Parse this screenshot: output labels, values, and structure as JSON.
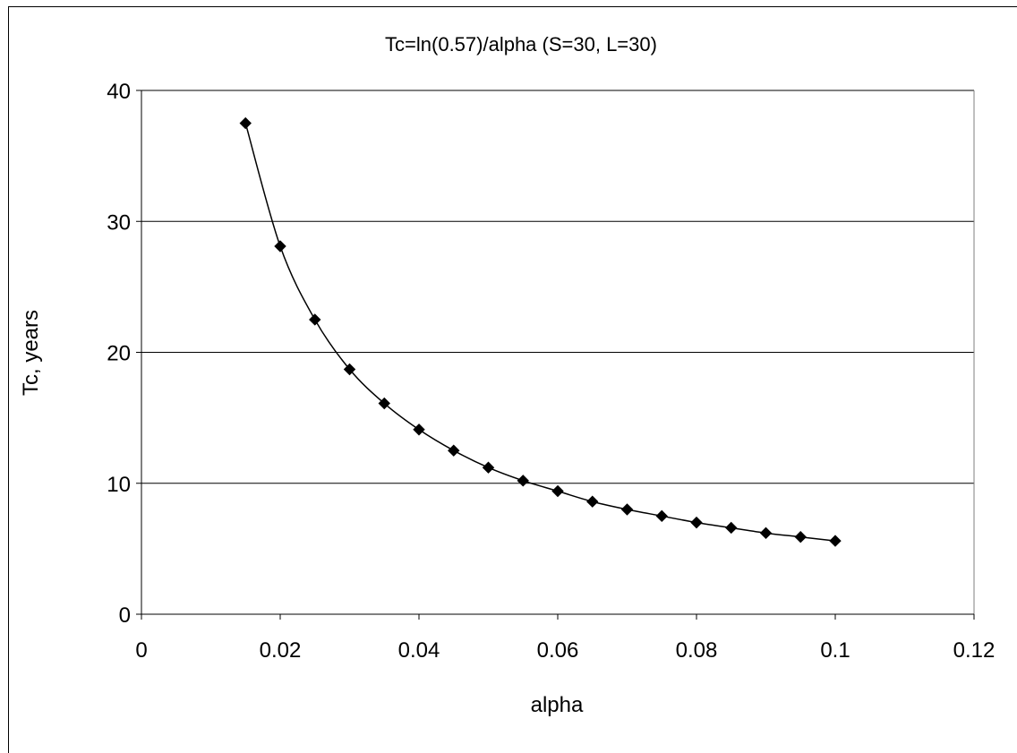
{
  "chart_data": {
    "type": "scatter",
    "title": "Tc=ln(0.57)/alpha  (S=30, L=30)",
    "xlabel": "alpha",
    "ylabel": "Tc, years",
    "xlim": [
      0,
      0.12
    ],
    "ylim": [
      0,
      40
    ],
    "xticks": [
      0,
      0.02,
      0.04,
      0.06,
      0.08,
      0.1,
      0.12
    ],
    "xtick_labels": [
      "0",
      "0.02",
      "0.04",
      "0.06",
      "0.08",
      "0.1",
      "0.12"
    ],
    "yticks": [
      0,
      10,
      20,
      30,
      40
    ],
    "ytick_labels": [
      "0",
      "10",
      "20",
      "30",
      "40"
    ],
    "grid": "horizontal",
    "marker": "diamond",
    "line": "smooth",
    "series": [
      {
        "x": [
          0.015,
          0.02,
          0.025,
          0.03,
          0.035,
          0.04,
          0.045,
          0.05,
          0.055,
          0.06,
          0.065,
          0.07,
          0.075,
          0.08,
          0.085,
          0.09,
          0.095,
          0.1
        ],
        "y": [
          37.5,
          28.1,
          22.5,
          18.7,
          16.1,
          14.1,
          12.5,
          11.2,
          10.2,
          9.4,
          8.6,
          8.0,
          7.5,
          7.0,
          6.6,
          6.2,
          5.9,
          5.6
        ],
        "color": "#000000"
      }
    ]
  }
}
